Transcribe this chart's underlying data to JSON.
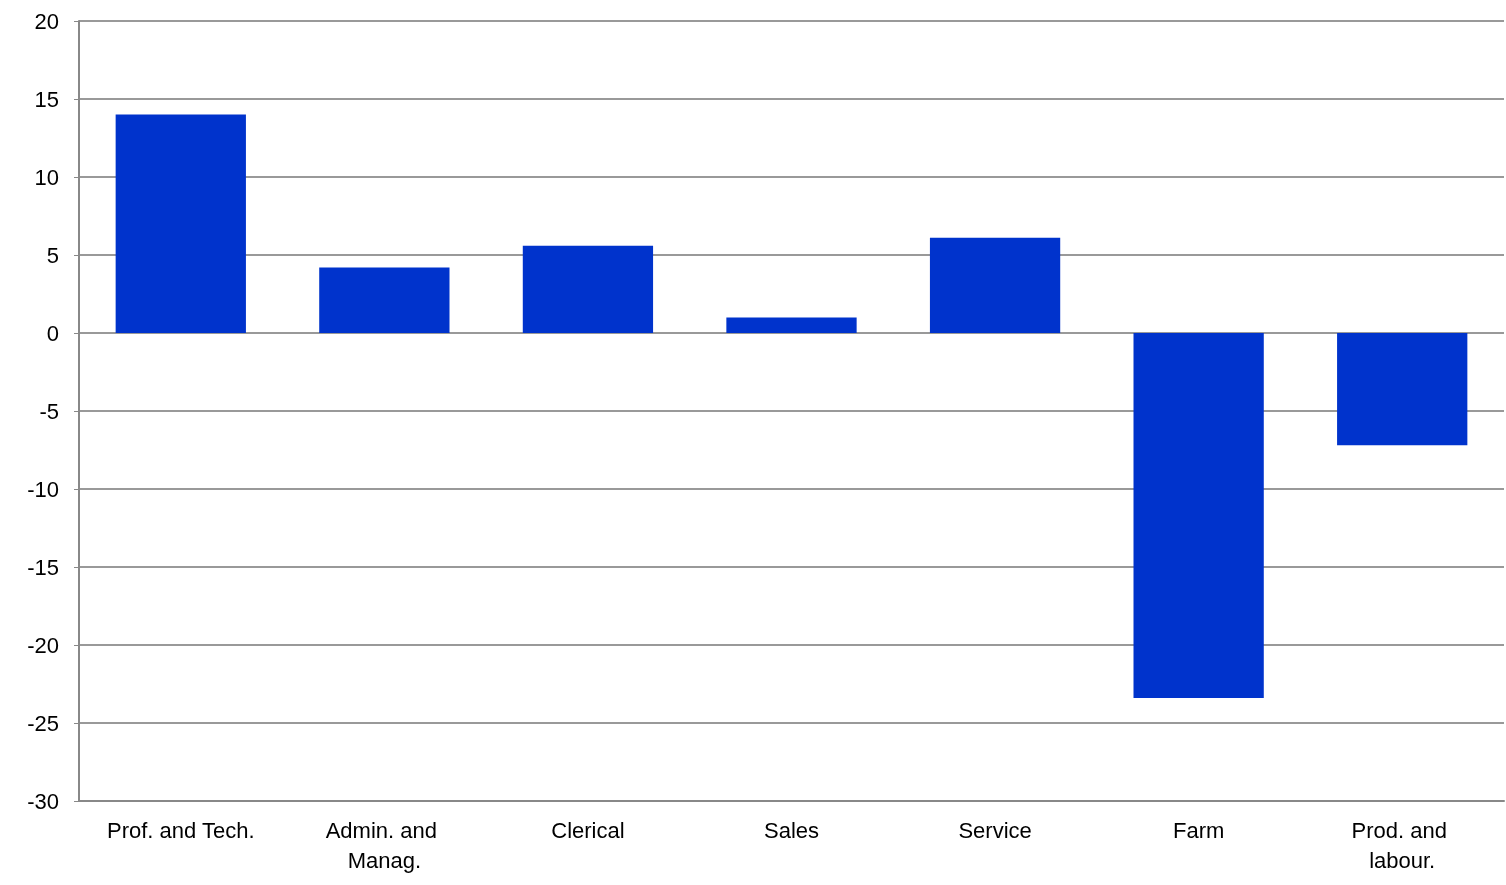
{
  "chart_data": {
    "type": "bar",
    "categories": [
      "Prof. and Tech.",
      "Admin. and Manag.",
      "Clerical",
      "Sales",
      "Service",
      "Farm",
      "Prod. and labour."
    ],
    "values": [
      14.0,
      4.2,
      5.6,
      1.0,
      6.1,
      -23.4,
      -7.2
    ],
    "color": "#0033cc",
    "ylim": [
      -30,
      20
    ],
    "yticks": [
      -30,
      -25,
      -20,
      -15,
      -10,
      -5,
      0,
      5,
      10,
      15,
      20
    ],
    "grid": "y"
  }
}
